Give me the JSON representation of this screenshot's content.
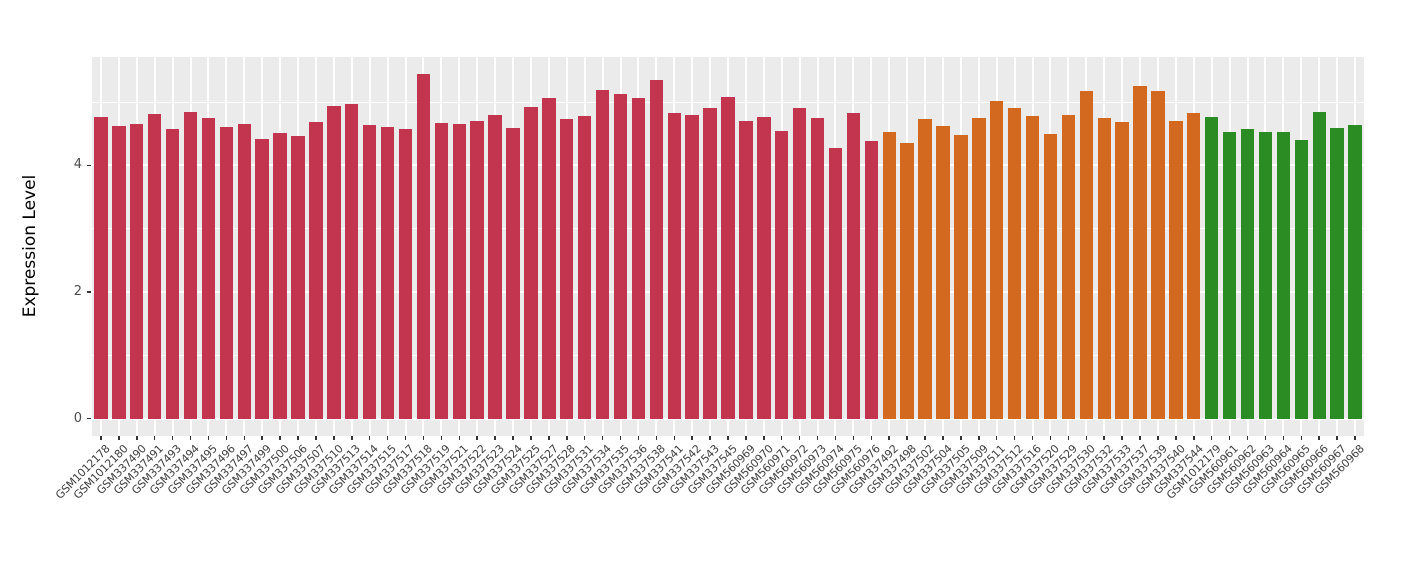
{
  "chart_data": {
    "type": "bar",
    "title": "",
    "xlabel": "",
    "ylabel": "Expression Level",
    "yticks": [
      0,
      2,
      4
    ],
    "major_gridlines": [
      0,
      2,
      4
    ],
    "minor_gridlines": [
      1,
      3,
      5
    ],
    "ylim": [
      -0.27,
      5.72
    ],
    "legend": "none",
    "panel_background": "#EBEBEB",
    "gridline_color": "#FFFFFF",
    "tick_color": "#333333",
    "axis_text_color": "#4D4D4D",
    "groups": [
      {
        "name": "group-1",
        "color": "#C3344F"
      },
      {
        "name": "group-2",
        "color": "#D2691E"
      },
      {
        "name": "group-3",
        "color": "#2A8C22"
      }
    ],
    "bars": [
      {
        "label": "GSM1012178",
        "value": 4.77,
        "group": 0
      },
      {
        "label": "GSM1012180",
        "value": 4.62,
        "group": 0
      },
      {
        "label": "GSM337490",
        "value": 4.65,
        "group": 0
      },
      {
        "label": "GSM337491",
        "value": 4.81,
        "group": 0
      },
      {
        "label": "GSM337493",
        "value": 4.58,
        "group": 0
      },
      {
        "label": "GSM337494",
        "value": 4.84,
        "group": 0
      },
      {
        "label": "GSM337495",
        "value": 4.74,
        "group": 0
      },
      {
        "label": "GSM337496",
        "value": 4.6,
        "group": 0
      },
      {
        "label": "GSM337497",
        "value": 4.66,
        "group": 0
      },
      {
        "label": "GSM337499",
        "value": 4.42,
        "group": 0
      },
      {
        "label": "GSM337500",
        "value": 4.51,
        "group": 0
      },
      {
        "label": "GSM337506",
        "value": 4.47,
        "group": 0
      },
      {
        "label": "GSM337507",
        "value": 4.68,
        "group": 0
      },
      {
        "label": "GSM337510",
        "value": 4.94,
        "group": 0
      },
      {
        "label": "GSM337513",
        "value": 4.97,
        "group": 0
      },
      {
        "label": "GSM337514",
        "value": 4.64,
        "group": 0
      },
      {
        "label": "GSM337515",
        "value": 4.6,
        "group": 0
      },
      {
        "label": "GSM337517",
        "value": 4.58,
        "group": 0
      },
      {
        "label": "GSM337518",
        "value": 5.44,
        "group": 0
      },
      {
        "label": "GSM337519",
        "value": 4.67,
        "group": 0
      },
      {
        "label": "GSM337521",
        "value": 4.65,
        "group": 0
      },
      {
        "label": "GSM337522",
        "value": 4.7,
        "group": 0
      },
      {
        "label": "GSM337523",
        "value": 4.8,
        "group": 0
      },
      {
        "label": "GSM337524",
        "value": 4.59,
        "group": 0
      },
      {
        "label": "GSM337525",
        "value": 4.92,
        "group": 0
      },
      {
        "label": "GSM337527",
        "value": 5.07,
        "group": 0
      },
      {
        "label": "GSM337528",
        "value": 4.73,
        "group": 0
      },
      {
        "label": "GSM337531",
        "value": 4.78,
        "group": 0
      },
      {
        "label": "GSM337534",
        "value": 5.19,
        "group": 0
      },
      {
        "label": "GSM337535",
        "value": 5.12,
        "group": 0
      },
      {
        "label": "GSM337536",
        "value": 5.07,
        "group": 0
      },
      {
        "label": "GSM337538",
        "value": 5.34,
        "group": 0
      },
      {
        "label": "GSM337541",
        "value": 4.82,
        "group": 0
      },
      {
        "label": "GSM337542",
        "value": 4.8,
        "group": 0
      },
      {
        "label": "GSM337543",
        "value": 4.91,
        "group": 0
      },
      {
        "label": "GSM337545",
        "value": 5.08,
        "group": 0
      },
      {
        "label": "GSM560969",
        "value": 4.7,
        "group": 0
      },
      {
        "label": "GSM560970",
        "value": 4.77,
        "group": 0
      },
      {
        "label": "GSM560971",
        "value": 4.54,
        "group": 0
      },
      {
        "label": "GSM560972",
        "value": 4.9,
        "group": 0
      },
      {
        "label": "GSM560973",
        "value": 4.75,
        "group": 0
      },
      {
        "label": "GSM560974",
        "value": 4.28,
        "group": 0
      },
      {
        "label": "GSM560975",
        "value": 4.83,
        "group": 0
      },
      {
        "label": "GSM560976",
        "value": 4.38,
        "group": 0
      },
      {
        "label": "GSM337492",
        "value": 4.52,
        "group": 1
      },
      {
        "label": "GSM337498",
        "value": 4.35,
        "group": 1
      },
      {
        "label": "GSM337502",
        "value": 4.73,
        "group": 1
      },
      {
        "label": "GSM337504",
        "value": 4.62,
        "group": 1
      },
      {
        "label": "GSM337505",
        "value": 4.48,
        "group": 1
      },
      {
        "label": "GSM337509",
        "value": 4.75,
        "group": 1
      },
      {
        "label": "GSM337511",
        "value": 5.01,
        "group": 1
      },
      {
        "label": "GSM337512",
        "value": 4.9,
        "group": 1
      },
      {
        "label": "GSM337516",
        "value": 4.78,
        "group": 1
      },
      {
        "label": "GSM337520",
        "value": 4.49,
        "group": 1
      },
      {
        "label": "GSM337529",
        "value": 4.79,
        "group": 1
      },
      {
        "label": "GSM337530",
        "value": 5.17,
        "group": 1
      },
      {
        "label": "GSM337532",
        "value": 4.75,
        "group": 1
      },
      {
        "label": "GSM337533",
        "value": 4.68,
        "group": 1
      },
      {
        "label": "GSM337537",
        "value": 5.25,
        "group": 1
      },
      {
        "label": "GSM337539",
        "value": 5.17,
        "group": 1
      },
      {
        "label": "GSM337540",
        "value": 4.7,
        "group": 1
      },
      {
        "label": "GSM337544",
        "value": 4.83,
        "group": 1
      },
      {
        "label": "GSM1012179",
        "value": 4.77,
        "group": 2
      },
      {
        "label": "GSM560961",
        "value": 4.52,
        "group": 2
      },
      {
        "label": "GSM560962",
        "value": 4.57,
        "group": 2
      },
      {
        "label": "GSM560963",
        "value": 4.52,
        "group": 2
      },
      {
        "label": "GSM560964",
        "value": 4.52,
        "group": 2
      },
      {
        "label": "GSM560965",
        "value": 4.4,
        "group": 2
      },
      {
        "label": "GSM560966",
        "value": 4.85,
        "group": 2
      },
      {
        "label": "GSM560967",
        "value": 4.59,
        "group": 2
      },
      {
        "label": "GSM560968",
        "value": 4.63,
        "group": 2
      }
    ]
  }
}
